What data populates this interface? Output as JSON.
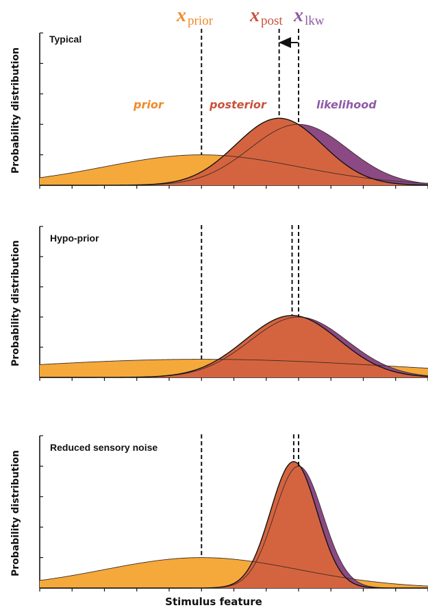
{
  "colors": {
    "prior": "#f5a93a",
    "posterior": "#d4643f",
    "likelihood": "#8b4a84",
    "prior_text": "#f08a2a",
    "posterior_text": "#c9523c",
    "likelihood_text": "#8e5aa6"
  },
  "markers": {
    "prior": {
      "symbol": "x",
      "sub": "prior"
    },
    "post": {
      "symbol": "x",
      "sub": "post"
    },
    "lkw": {
      "symbol": "x",
      "sub": "lkw"
    }
  },
  "curve_labels": {
    "prior": "prior",
    "posterior": "posterior",
    "likelihood": "likelihood"
  },
  "x_label": "Stimulus feature",
  "panels": [
    {
      "title": "Typical",
      "ylabel": "Probability distribution"
    },
    {
      "title": "Hypo-prior",
      "ylabel": "Probability distribution"
    },
    {
      "title": "Reduced sensory noise",
      "ylabel": "Probability distribution"
    }
  ],
  "chart_data": [
    {
      "type": "area",
      "title": "Typical",
      "ylabel": "Probability distribution",
      "xlabel": "",
      "series": [
        {
          "name": "prior",
          "mean": 0,
          "sd": 3.0,
          "peak": 1.0
        },
        {
          "name": "likelihood",
          "mean": 3.0,
          "sd": 1.5,
          "peak": 2.0
        },
        {
          "name": "posterior",
          "mean": 2.4,
          "sd": 1.34,
          "peak": 2.2
        }
      ],
      "x_range": [
        -5,
        7
      ],
      "y_range": [
        0,
        5
      ]
    },
    {
      "type": "area",
      "title": "Hypo-prior",
      "ylabel": "Probability distribution",
      "xlabel": "",
      "series": [
        {
          "name": "prior",
          "mean": 0,
          "sd": 6.0,
          "peak": 0.6
        },
        {
          "name": "likelihood",
          "mean": 3.0,
          "sd": 1.5,
          "peak": 2.0
        },
        {
          "name": "posterior",
          "mean": 2.8,
          "sd": 1.45,
          "peak": 2.05
        }
      ],
      "x_range": [
        -5,
        7
      ],
      "y_range": [
        0,
        5
      ]
    },
    {
      "type": "area",
      "title": "Reduced sensory noise",
      "ylabel": "Probability distribution",
      "xlabel": "Stimulus feature",
      "series": [
        {
          "name": "prior",
          "mean": 0,
          "sd": 3.0,
          "peak": 1.0
        },
        {
          "name": "likelihood",
          "mean": 3.0,
          "sd": 0.75,
          "peak": 4.0
        },
        {
          "name": "posterior",
          "mean": 2.85,
          "sd": 0.72,
          "peak": 4.15
        }
      ],
      "x_range": [
        -5,
        7
      ],
      "y_range": [
        0,
        5
      ]
    }
  ]
}
